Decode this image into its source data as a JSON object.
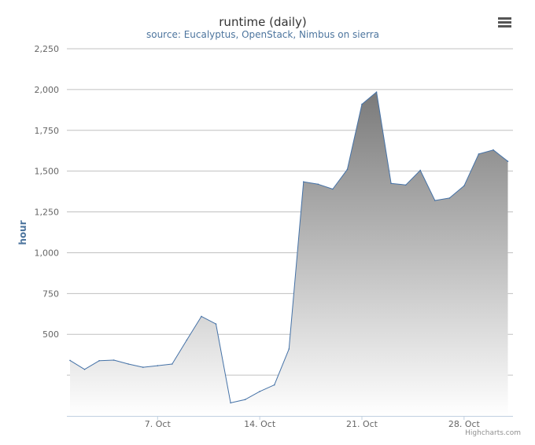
{
  "credits": "Highcharts.com",
  "menu_icon": "hamburger-menu-icon",
  "colors": {
    "line": "#4572a7",
    "area_top": "#7a7a7a",
    "area_bottom": "#ffffff",
    "menu": "#555555"
  },
  "chart_data": {
    "type": "area",
    "title": "runtime (daily)",
    "subtitle": "source: Eucalyptus, OpenStack, Nimbus on sierra",
    "xlabel": "",
    "ylabel": "hour",
    "ylim": [
      0,
      2250
    ],
    "yticks": [
      500,
      750,
      1000,
      1250,
      1500,
      1750,
      2000,
      2250
    ],
    "yticklabels": [
      "500",
      "750",
      "1,000",
      "1,250",
      "1,500",
      "1,750",
      "2,000",
      "2,250"
    ],
    "x_start": "2013-10-01",
    "x_step_days": 1,
    "xticks": [
      {
        "label": "7. Oct",
        "date": "2013-10-07"
      },
      {
        "label": "14. Oct",
        "date": "2013-10-14"
      },
      {
        "label": "21. Oct",
        "date": "2013-10-21"
      },
      {
        "label": "28. Oct",
        "date": "2013-10-28"
      }
    ],
    "grid": true,
    "legend": "none",
    "series": [
      {
        "values": [
          340,
          285,
          338,
          342,
          318,
          298,
          308,
          318,
          465,
          610,
          563,
          80,
          100,
          150,
          190,
          410,
          1435,
          1420,
          1390,
          1510,
          1910,
          1985,
          1425,
          1415,
          1505,
          1320,
          1335,
          1410,
          1605,
          1630,
          1560
        ]
      }
    ]
  }
}
